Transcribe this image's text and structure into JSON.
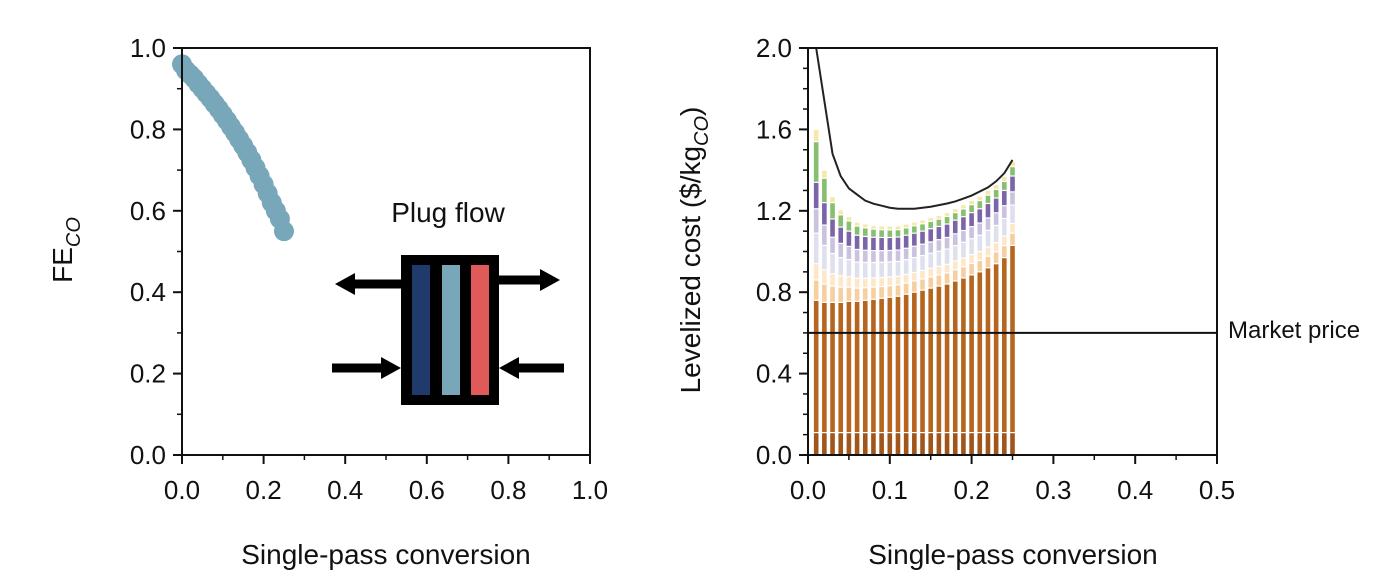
{
  "chart_data": [
    {
      "type": "scatter",
      "xlabel": "Single-pass conversion",
      "ylabel_main": "FE",
      "ylabel_sub": "CO",
      "xlim": [
        0,
        1.0
      ],
      "ylim": [
        0,
        1.0
      ],
      "xticks": [
        "0.0",
        "0.2",
        "0.4",
        "0.6",
        "0.8",
        "1.0"
      ],
      "yticks": [
        "0.0",
        "0.2",
        "0.4",
        "0.6",
        "0.8",
        "1.0"
      ],
      "marker_color": "#77a7b8",
      "series": [
        {
          "x": [
            0.0,
            0.01,
            0.02,
            0.03,
            0.04,
            0.05,
            0.06,
            0.07,
            0.08,
            0.09,
            0.1,
            0.11,
            0.12,
            0.13,
            0.14,
            0.15,
            0.16,
            0.17,
            0.18,
            0.19,
            0.2,
            0.21,
            0.22,
            0.23,
            0.24,
            0.25
          ],
          "y": [
            0.96,
            0.945,
            0.935,
            0.925,
            0.912,
            0.9,
            0.888,
            0.876,
            0.863,
            0.85,
            0.836,
            0.822,
            0.807,
            0.792,
            0.776,
            0.76,
            0.743,
            0.725,
            0.706,
            0.686,
            0.665,
            0.643,
            0.62,
            0.6,
            0.58,
            0.55
          ]
        }
      ],
      "annotation": "Plug flow",
      "inset_colors": [
        "#1f3a6b",
        "#77a7b8",
        "#e05a5a"
      ]
    },
    {
      "type": "bar",
      "stacked": true,
      "xlabel": "Single-pass conversion",
      "ylabel_main": "Levelized cost ($/kg",
      "ylabel_sub": "CO",
      "ylabel_end": ")",
      "xlim": [
        0,
        0.5
      ],
      "ylim": [
        0,
        2.0
      ],
      "xticks": [
        "0.0",
        "0.1",
        "0.2",
        "0.3",
        "0.4",
        "0.5"
      ],
      "yticks": [
        "0.0",
        "0.4",
        "0.8",
        "1.2",
        "1.6",
        "2.0"
      ],
      "market_price": 0.6,
      "market_price_label": "Market price",
      "x": [
        0.01,
        0.02,
        0.03,
        0.04,
        0.05,
        0.06,
        0.07,
        0.08,
        0.09,
        0.1,
        0.11,
        0.12,
        0.13,
        0.14,
        0.15,
        0.16,
        0.17,
        0.18,
        0.19,
        0.2,
        0.21,
        0.22,
        0.23,
        0.24,
        0.25
      ],
      "series": [
        {
          "color": "#a0561a",
          "values": [
            0.11,
            0.11,
            0.11,
            0.11,
            0.11,
            0.11,
            0.11,
            0.11,
            0.11,
            0.11,
            0.11,
            0.11,
            0.11,
            0.11,
            0.11,
            0.11,
            0.11,
            0.11,
            0.11,
            0.11,
            0.11,
            0.11,
            0.11,
            0.11,
            0.11
          ]
        },
        {
          "color": "#b5651d",
          "values": [
            0.65,
            0.64,
            0.64,
            0.64,
            0.645,
            0.645,
            0.65,
            0.655,
            0.66,
            0.665,
            0.67,
            0.68,
            0.69,
            0.7,
            0.71,
            0.72,
            0.73,
            0.745,
            0.76,
            0.775,
            0.79,
            0.81,
            0.83,
            0.86,
            0.92
          ]
        },
        {
          "color": "#f5cfa0",
          "values": [
            0.1,
            0.09,
            0.08,
            0.075,
            0.07,
            0.065,
            0.062,
            0.06,
            0.058,
            0.057,
            0.056,
            0.055,
            0.055,
            0.055,
            0.055,
            0.055,
            0.055,
            0.055,
            0.055,
            0.056,
            0.056,
            0.057,
            0.058,
            0.059,
            0.06
          ]
        },
        {
          "color": "#fde7c8",
          "values": [
            0.08,
            0.07,
            0.06,
            0.055,
            0.05,
            0.048,
            0.046,
            0.045,
            0.044,
            0.043,
            0.042,
            0.042,
            0.042,
            0.042,
            0.042,
            0.042,
            0.042,
            0.043,
            0.043,
            0.044,
            0.044,
            0.045,
            0.046,
            0.047,
            0.048
          ]
        },
        {
          "color": "#dfe0ee",
          "values": [
            0.15,
            0.12,
            0.1,
            0.09,
            0.085,
            0.08,
            0.078,
            0.076,
            0.075,
            0.074,
            0.073,
            0.073,
            0.073,
            0.073,
            0.074,
            0.074,
            0.075,
            0.076,
            0.077,
            0.078,
            0.08,
            0.082,
            0.084,
            0.086,
            0.09
          ]
        },
        {
          "color": "#c9c3de",
          "values": [
            0.12,
            0.1,
            0.08,
            0.07,
            0.065,
            0.062,
            0.06,
            0.058,
            0.057,
            0.056,
            0.056,
            0.056,
            0.056,
            0.056,
            0.056,
            0.057,
            0.057,
            0.058,
            0.058,
            0.059,
            0.06,
            0.061,
            0.062,
            0.063,
            0.065
          ]
        },
        {
          "color": "#7b64a8",
          "values": [
            0.13,
            0.11,
            0.09,
            0.08,
            0.075,
            0.07,
            0.068,
            0.066,
            0.065,
            0.064,
            0.064,
            0.064,
            0.064,
            0.064,
            0.065,
            0.065,
            0.066,
            0.067,
            0.068,
            0.069,
            0.07,
            0.071,
            0.073,
            0.075,
            0.078
          ]
        },
        {
          "color": "#86bf6e",
          "values": [
            0.2,
            0.12,
            0.08,
            0.06,
            0.05,
            0.045,
            0.042,
            0.04,
            0.038,
            0.037,
            0.036,
            0.036,
            0.036,
            0.036,
            0.036,
            0.036,
            0.037,
            0.037,
            0.038,
            0.039,
            0.04,
            0.041,
            0.042,
            0.044,
            0.046
          ]
        },
        {
          "color": "#f4e9a8",
          "values": [
            0.06,
            0.04,
            0.03,
            0.025,
            0.022,
            0.02,
            0.02,
            0.019,
            0.019,
            0.019,
            0.019,
            0.019,
            0.019,
            0.019,
            0.019,
            0.019,
            0.02,
            0.02,
            0.021,
            0.021,
            0.022,
            0.023,
            0.024,
            0.025,
            0.026
          ]
        }
      ],
      "total": [
        3.0,
        1.74,
        1.48,
        1.37,
        1.31,
        1.28,
        1.25,
        1.235,
        1.225,
        1.215,
        1.21,
        1.21,
        1.21,
        1.215,
        1.22,
        1.228,
        1.236,
        1.246,
        1.26,
        1.275,
        1.295,
        1.315,
        1.345,
        1.385,
        1.45
      ],
      "line_color": "#222222"
    }
  ]
}
